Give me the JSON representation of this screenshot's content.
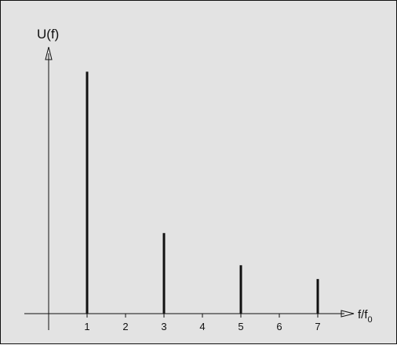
{
  "chart_data": {
    "type": "bar",
    "xlabel": {
      "main": "f/f",
      "sub": "0"
    },
    "ylabel": "U(f)",
    "x": [
      1,
      3,
      5,
      7
    ],
    "values": [
      1.0,
      0.333,
      0.2,
      0.143
    ],
    "x_ticks": [
      "1",
      "2",
      "3",
      "4",
      "5",
      "6",
      "7"
    ],
    "xlim": [
      -0.7,
      7.6
    ],
    "ylim": [
      0,
      1.05
    ],
    "grid": false,
    "legend": false,
    "colors": {
      "background": "#e3e3e3",
      "ink": "#111111"
    }
  }
}
